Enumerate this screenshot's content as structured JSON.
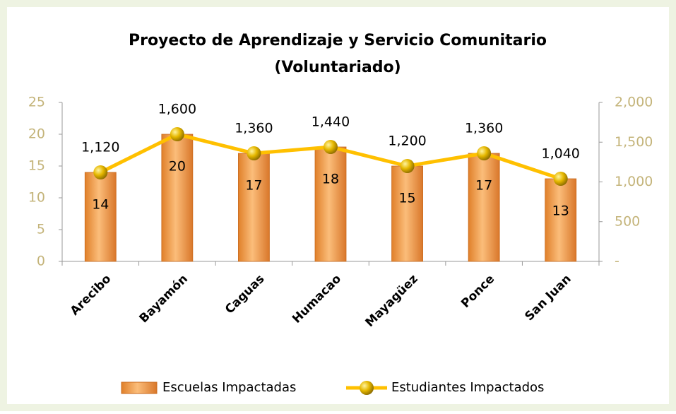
{
  "chart_data": {
    "type": "bar",
    "title": [
      "Proyecto de Aprendizaje y Servicio Comunitario",
      "(Voluntariado)"
    ],
    "categories": [
      "Arecibo",
      "Bayamón",
      "Caguas",
      "Humacao",
      "Mayagüez",
      "Ponce",
      "San Juan"
    ],
    "series": [
      {
        "name": "Escuelas Impactadas",
        "type": "bar",
        "color": "#f5a04a",
        "values": [
          14,
          20,
          17,
          18,
          15,
          17,
          13
        ]
      },
      {
        "name": "Estudiantes Impactados",
        "type": "line",
        "axis": "y2",
        "color": "#ffc000",
        "values": [
          1120,
          1600,
          1360,
          1440,
          1200,
          1360,
          1040
        ],
        "value_labels": [
          "1,120",
          "1,600",
          "1,360",
          "1,440",
          "1,200",
          "1,360",
          "1,040"
        ]
      }
    ],
    "ylim": [
      0,
      25
    ],
    "yticks": [
      0,
      5,
      10,
      15,
      20,
      25
    ],
    "y2lim": [
      0,
      2000
    ],
    "y2ticks": [
      {
        "value": 0,
        "label": "-"
      },
      500,
      {
        "value": 1000,
        "label": "1,000"
      },
      {
        "value": 1500,
        "label": "1,500"
      },
      {
        "value": 2000,
        "label": "2,000"
      }
    ],
    "legend": "bottom"
  }
}
